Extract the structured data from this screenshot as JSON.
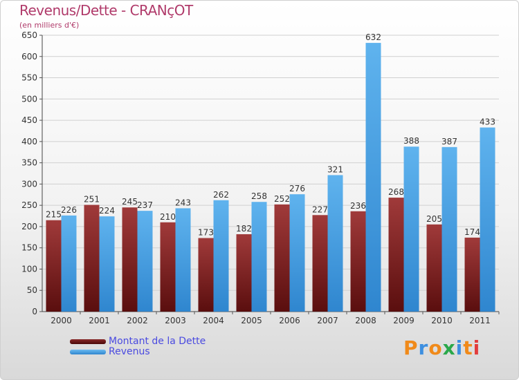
{
  "title": "Revenus/Dette - CRANçOT",
  "subtitle": "(en milliers d'€)",
  "brand": {
    "text": "Proxiti",
    "letter_colors": [
      "#f08a1a",
      "#3d8fe0",
      "#f08a1a",
      "#2aa84a",
      "#3d8fe0",
      "#f08a1a",
      "#e23d3d"
    ]
  },
  "chart_data": {
    "type": "bar",
    "title": "Revenus/Dette - CRANçOT",
    "subtitle": "(en milliers d'€)",
    "categories": [
      "2000",
      "2001",
      "2002",
      "2003",
      "2004",
      "2005",
      "2006",
      "2007",
      "2008",
      "2009",
      "2010",
      "2011"
    ],
    "series": [
      {
        "name": "Montant de la Dette",
        "color": "#7a1c1c",
        "values": [
          215,
          251,
          245,
          210,
          173,
          182,
          252,
          227,
          236,
          268,
          205,
          174
        ]
      },
      {
        "name": "Revenus",
        "color": "#4aa3e6",
        "values": [
          226,
          224,
          237,
          243,
          262,
          258,
          276,
          321,
          632,
          388,
          387,
          433
        ]
      }
    ],
    "ylim": [
      0,
      650
    ],
    "yticks": [
      0,
      50,
      100,
      150,
      200,
      250,
      300,
      350,
      400,
      450,
      500,
      550,
      600,
      650
    ],
    "grid": true,
    "legend_position": "bottom-left"
  }
}
